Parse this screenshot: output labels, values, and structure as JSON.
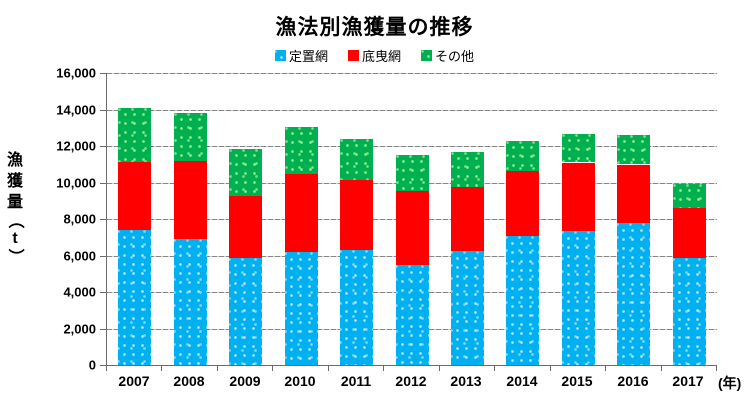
{
  "title": "漁法別漁獲量の推移",
  "legend": [
    {
      "label": "定置網",
      "color": "#00B0F0",
      "textured": true
    },
    {
      "label": "底曳網",
      "color": "#FF0000",
      "textured": false
    },
    {
      "label": "その他",
      "color": "#00B050",
      "textured": true
    }
  ],
  "y_axis": {
    "title": "漁獲量（t）",
    "tick_labels": [
      "0",
      "2,000",
      "4,000",
      "6,000",
      "8,000",
      "10,000",
      "12,000",
      "14,000",
      "16,000"
    ],
    "min": 0,
    "max": 16000,
    "step": 2000
  },
  "x_axis": {
    "unit_label": "(年)"
  },
  "chart_data": {
    "type": "bar",
    "stacked": true,
    "title": "漁法別漁獲量の推移",
    "xlabel": "(年)",
    "ylabel": "漁獲量（t）",
    "ylim": [
      0,
      16000
    ],
    "grid": true,
    "legend_position": "top",
    "categories": [
      "2007",
      "2008",
      "2009",
      "2010",
      "2011",
      "2012",
      "2013",
      "2014",
      "2015",
      "2016",
      "2017"
    ],
    "series": [
      {
        "name": "定置網",
        "color": "#00B0F0",
        "values": [
          7400,
          6900,
          5850,
          6200,
          6300,
          5500,
          6250,
          7050,
          7350,
          7800,
          5850
        ]
      },
      {
        "name": "底曳網",
        "color": "#FF0000",
        "values": [
          3700,
          4300,
          3400,
          4250,
          3850,
          4050,
          3500,
          3600,
          3750,
          3200,
          2750
        ]
      },
      {
        "name": "その他",
        "color": "#00B050",
        "values": [
          2950,
          2650,
          2550,
          2600,
          2250,
          1950,
          1900,
          1650,
          1550,
          1600,
          1300
        ]
      }
    ],
    "totals": [
      14050,
      13850,
      11800,
      13050,
      12400,
      11500,
      11650,
      12300,
      12650,
      12600,
      9900
    ]
  }
}
